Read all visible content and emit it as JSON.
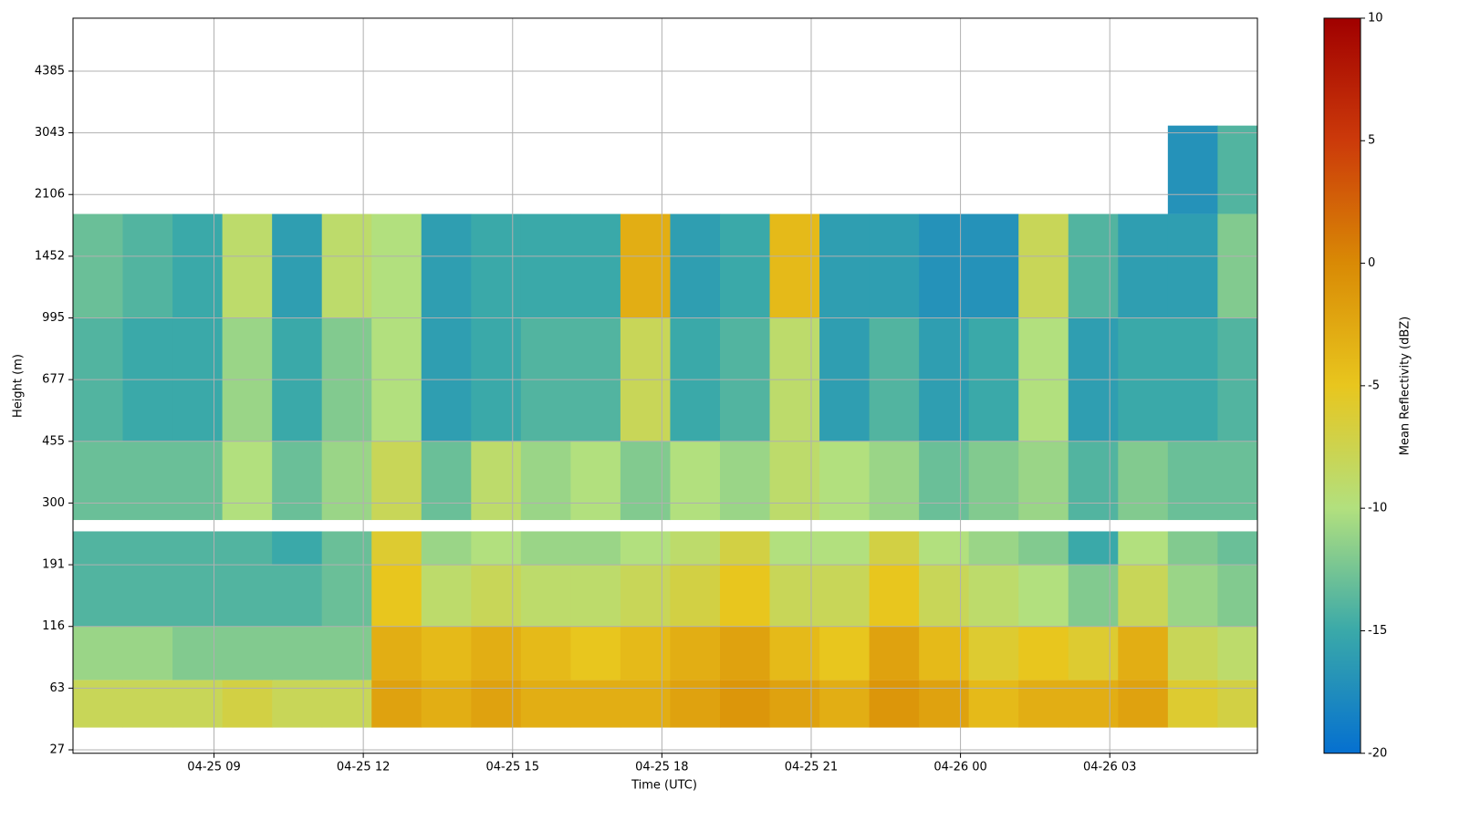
{
  "chart_data": {
    "type": "heatmap",
    "xlabel": "Time (UTC)",
    "ylabel": "Height (m)",
    "colorbar_label": "Mean Reflectivity (dBZ)",
    "xlim": [
      "04-25 06:10",
      "04-26 05:58"
    ],
    "xticks": [
      "04-25 09",
      "04-25 12",
      "04-25 15",
      "04-25 18",
      "04-25 21",
      "04-26 00",
      "04-26 03"
    ],
    "ylim": [
      25,
      5536
    ],
    "yticks": [
      27,
      63,
      116,
      191,
      300,
      455,
      677,
      995,
      1452,
      2106,
      3043,
      4385
    ],
    "grid": true,
    "clim": [
      -20,
      10
    ],
    "cticks": [
      -20,
      -15,
      -10,
      -5,
      0,
      5,
      10
    ],
    "colormap": [
      "#0570d0",
      "#3aa9a9",
      "#b2e07e",
      "#e8c61e",
      "#d98a05",
      "#cc3a0a",
      "#a00000"
    ],
    "x_bins": [
      "04-25 06:10",
      "04-25 07:10",
      "04-25 08:10",
      "04-25 09:10",
      "04-25 10:10",
      "04-25 11:10",
      "04-25 12:10",
      "04-25 13:10",
      "04-25 14:10",
      "04-25 15:10",
      "04-25 16:10",
      "04-25 17:10",
      "04-25 18:10",
      "04-25 19:10",
      "04-25 20:10",
      "04-25 21:10",
      "04-25 22:10",
      "04-25 23:10",
      "04-26 00:10",
      "04-26 01:10",
      "04-26 02:10",
      "04-26 03:10",
      "04-26 04:10",
      "04-26 05:10",
      "04-26 05:58"
    ],
    "y_bins": [
      [
        40,
        70
      ],
      [
        70,
        116
      ],
      [
        116,
        191
      ],
      [
        191,
        250
      ],
      [
        270,
        455
      ],
      [
        455,
        995
      ],
      [
        995,
        1900
      ],
      [
        1900,
        3200
      ]
    ],
    "values": [
      [
        -8,
        -8,
        -8,
        -7,
        -8,
        -8,
        -2,
        -3,
        -2,
        -3,
        -3,
        -3,
        -2,
        -1,
        -2,
        -3,
        -1,
        -2,
        -4,
        -3,
        -3,
        -2,
        -6,
        -7
      ],
      [
        -11,
        -11,
        -12,
        -12,
        -12,
        -12,
        -3,
        -4,
        -3,
        -4,
        -5,
        -4,
        -3,
        -2,
        -4,
        -5,
        -2,
        -4,
        -6,
        -5,
        -6,
        -3,
        -8,
        -9
      ],
      [
        -14,
        -14,
        -14,
        -14,
        -14,
        -13,
        -5,
        -9,
        -8,
        -9,
        -9,
        -8,
        -7,
        -5,
        -8,
        -8,
        -5,
        -8,
        -9,
        -10,
        -12,
        -8,
        -11,
        -12
      ],
      [
        -14,
        -14,
        -14,
        -14,
        -15,
        -13,
        -6,
        -11,
        -10,
        -11,
        -11,
        -10,
        -9,
        -7,
        -10,
        -10,
        -7,
        -10,
        -11,
        -12,
        -15,
        -10,
        -12,
        -13
      ],
      [
        -13,
        -13,
        -13,
        -10,
        -13,
        -11,
        -8,
        -13,
        -9,
        -11,
        -10,
        -12,
        -10,
        -11,
        -9,
        -10,
        -11,
        -13,
        -12,
        -11,
        -14,
        -12,
        -13,
        -13
      ],
      [
        -14,
        -15,
        -15,
        -11,
        -15,
        -12,
        -10,
        -16,
        -15,
        -14,
        -14,
        -8,
        -15,
        -14,
        -9,
        -16,
        -14,
        -16,
        -15,
        -10,
        -16,
        -15,
        -15,
        -14
      ],
      [
        -13,
        -14,
        -15,
        -9,
        -16,
        -9,
        -10,
        -16,
        -15,
        -15,
        -15,
        -3,
        -16,
        -15,
        -4,
        -16,
        -16,
        -17,
        -17,
        -8,
        -14,
        -16,
        -16,
        -12
      ],
      [
        null,
        null,
        null,
        null,
        null,
        null,
        null,
        null,
        null,
        null,
        null,
        null,
        null,
        null,
        null,
        null,
        null,
        null,
        null,
        null,
        null,
        null,
        -17,
        -14
      ]
    ]
  }
}
